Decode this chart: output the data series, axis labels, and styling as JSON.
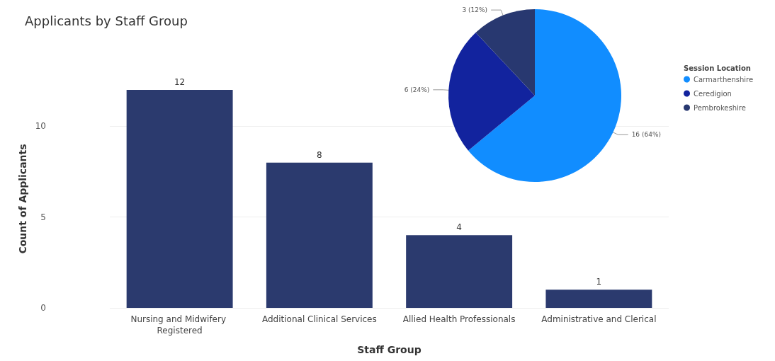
{
  "chart_data": [
    {
      "type": "bar",
      "title": "Applicants by Staff Group",
      "xlabel": "Staff Group",
      "ylabel": "Count of Applicants",
      "categories": [
        "Nursing and Midwifery Registered",
        "Additional Clinical Services",
        "Allied Health Professionals",
        "Administrative and Clerical"
      ],
      "values": [
        12,
        8,
        4,
        1
      ],
      "color": "#2b3a6e",
      "ylim": [
        0,
        12
      ],
      "yticks": [
        0,
        5,
        10
      ],
      "grid": "y",
      "data_labels": true
    },
    {
      "type": "pie",
      "legend_title": "Session Location",
      "legend": "right",
      "categories": [
        "Carmarthenshire",
        "Ceredigion",
        "Pembrokeshire"
      ],
      "values": [
        16,
        6,
        3
      ],
      "colors": [
        "#118dff",
        "#12239e",
        "#283870"
      ],
      "value_labels": [
        "16 (64%)",
        "6 (24%)",
        "3 (12%)"
      ]
    }
  ]
}
